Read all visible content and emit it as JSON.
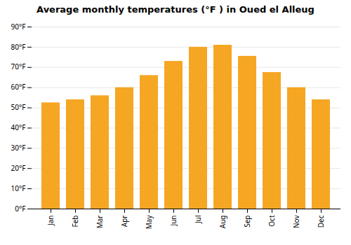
{
  "chart_data": {
    "type": "bar",
    "title": "Average monthly temperatures (°F ) in Oued el Alleug",
    "categories": [
      "Jan",
      "Feb",
      "Mar",
      "Apr",
      "May",
      "Jun",
      "Jul",
      "Aug",
      "Sep",
      "Oct",
      "Nov",
      "Dec"
    ],
    "values": [
      52.5,
      54.0,
      56.0,
      60.0,
      66.0,
      73.0,
      80.0,
      81.0,
      75.5,
      67.5,
      60.0,
      54.0
    ],
    "color": "#F5A623",
    "ylim": [
      0,
      90
    ],
    "yticks": [
      {
        "value": 0,
        "label": "0°F"
      },
      {
        "value": 10,
        "label": "10°F"
      },
      {
        "value": 20,
        "label": "20°F"
      },
      {
        "value": 30,
        "label": "30°F"
      },
      {
        "value": 40,
        "label": "40°F"
      },
      {
        "value": 50,
        "label": "50°F"
      },
      {
        "value": 60,
        "label": "60°F"
      },
      {
        "value": 70,
        "label": "70°F"
      },
      {
        "value": 80,
        "label": "80°F"
      },
      {
        "value": 90,
        "label": "90°F"
      }
    ],
    "grid": true
  }
}
